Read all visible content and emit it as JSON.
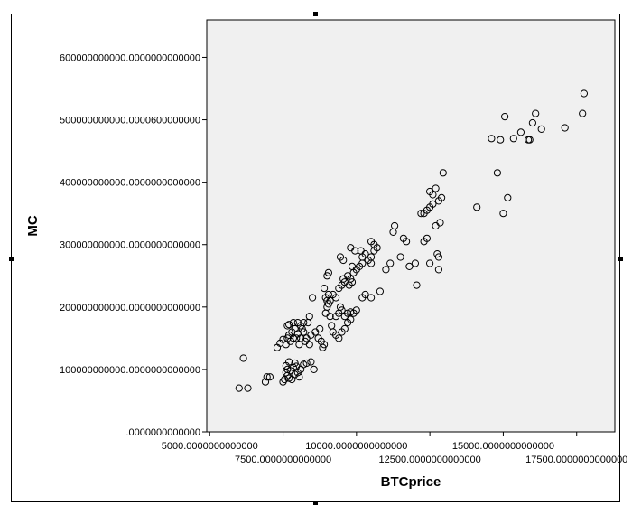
{
  "chart_data": {
    "type": "scatter",
    "title": "",
    "xlabel": "BTCprice",
    "ylabel": "MC",
    "xlim": [
      4900,
      18800
    ],
    "ylim": [
      0,
      660000000000
    ],
    "x_ticks": [
      {
        "value": 5000,
        "label": "5000.0000000000000"
      },
      {
        "value": 7500,
        "label": "7500.0000000000000"
      },
      {
        "value": 10000,
        "label": "10000.0000000000000"
      },
      {
        "value": 12500,
        "label": "12500.0000000000000"
      },
      {
        "value": 15000,
        "label": "15000.0000000000000"
      },
      {
        "value": 17500,
        "label": "17500.0000000000000"
      }
    ],
    "y_ticks": [
      {
        "value": 0,
        "label": ".0000000000000"
      },
      {
        "value": 100000000000,
        "label": "100000000000.0000000000000"
      },
      {
        "value": 200000000000,
        "label": "200000000000.0000000000000"
      },
      {
        "value": 300000000000,
        "label": "300000000000.0000000000000"
      },
      {
        "value": 400000000000,
        "label": "400000000000.0000000000000"
      },
      {
        "value": 500000000000,
        "label": "500000000000.0000600000000"
      },
      {
        "value": 600000000000,
        "label": "600000000000.0000000000000"
      }
    ],
    "grid": false,
    "colors": {
      "plot_background": "#f0f0f0",
      "marker_stroke": "#000000"
    },
    "points": [
      [
        6000,
        70000000000.0
      ],
      [
        6300,
        70000000000.0
      ],
      [
        6150,
        118000000000.0
      ],
      [
        6900,
        80000000000.0
      ],
      [
        6950,
        88000000000.0
      ],
      [
        7050,
        88000000000.0
      ],
      [
        7500,
        80000000000.0
      ],
      [
        7550,
        84000000000.0
      ],
      [
        7650,
        90000000000.0
      ],
      [
        7700,
        86000000000.0
      ],
      [
        7800,
        84000000000.0
      ],
      [
        7900,
        92000000000.0
      ],
      [
        8000,
        95000000000.0
      ],
      [
        8050,
        88000000000.0
      ],
      [
        7600,
        95000000000.0
      ],
      [
        7650,
        100000000000.0
      ],
      [
        7750,
        98000000000.0
      ],
      [
        7850,
        103000000000.0
      ],
      [
        7950,
        105000000000.0
      ],
      [
        8100,
        100000000000.0
      ],
      [
        8200,
        108000000000.0
      ],
      [
        7600,
        106000000000.0
      ],
      [
        7700,
        112000000000.0
      ],
      [
        7900,
        110000000000.0
      ],
      [
        8300,
        110000000000.0
      ],
      [
        8450,
        112000000000.0
      ],
      [
        8550,
        100000000000.0
      ],
      [
        7300,
        135000000000.0
      ],
      [
        7400,
        142000000000.0
      ],
      [
        7500,
        148000000000.0
      ],
      [
        7600,
        140000000000.0
      ],
      [
        7650,
        150000000000.0
      ],
      [
        7700,
        155000000000.0
      ],
      [
        7750,
        145000000000.0
      ],
      [
        7800,
        160000000000.0
      ],
      [
        7850,
        150000000000.0
      ],
      [
        7900,
        165000000000.0
      ],
      [
        7950,
        150000000000.0
      ],
      [
        8000,
        157000000000.0
      ],
      [
        8050,
        140000000000.0
      ],
      [
        8100,
        150000000000.0
      ],
      [
        8150,
        165000000000.0
      ],
      [
        8200,
        160000000000.0
      ],
      [
        8250,
        145000000000.0
      ],
      [
        8300,
        150000000000.0
      ],
      [
        8350,
        175000000000.0
      ],
      [
        8400,
        140000000000.0
      ],
      [
        8450,
        155000000000.0
      ],
      [
        7650,
        170000000000.0
      ],
      [
        7700,
        172000000000.0
      ],
      [
        7850,
        175000000000.0
      ],
      [
        8000,
        175000000000.0
      ],
      [
        8100,
        170000000000.0
      ],
      [
        8200,
        175000000000.0
      ],
      [
        8400,
        185000000000.0
      ],
      [
        8500,
        215000000000.0
      ],
      [
        8600,
        160000000000.0
      ],
      [
        8700,
        150000000000.0
      ],
      [
        8750,
        165000000000.0
      ],
      [
        8800,
        145000000000.0
      ],
      [
        8850,
        135000000000.0
      ],
      [
        8900,
        140000000000.0
      ],
      [
        8950,
        190000000000.0
      ],
      [
        9000,
        200000000000.0
      ],
      [
        9050,
        205000000000.0
      ],
      [
        9100,
        210000000000.0
      ],
      [
        9100,
        185000000000.0
      ],
      [
        9150,
        170000000000.0
      ],
      [
        9200,
        160000000000.0
      ],
      [
        9300,
        155000000000.0
      ],
      [
        9400,
        150000000000.0
      ],
      [
        9500,
        160000000000.0
      ],
      [
        9600,
        165000000000.0
      ],
      [
        9700,
        175000000000.0
      ],
      [
        9800,
        180000000000.0
      ],
      [
        8950,
        215000000000.0
      ],
      [
        9000,
        210000000000.0
      ],
      [
        9050,
        220000000000.0
      ],
      [
        8900,
        230000000000.0
      ],
      [
        9000,
        250000000000.0
      ],
      [
        9050,
        255000000000.0
      ],
      [
        9300,
        185000000000.0
      ],
      [
        9400,
        190000000000.0
      ],
      [
        9450,
        200000000000.0
      ],
      [
        9500,
        195000000000.0
      ],
      [
        9600,
        185000000000.0
      ],
      [
        9700,
        190000000000.0
      ],
      [
        9800,
        192000000000.0
      ],
      [
        9900,
        190000000000.0
      ],
      [
        10000,
        195000000000.0
      ],
      [
        9200,
        220000000000.0
      ],
      [
        9300,
        215000000000.0
      ],
      [
        9400,
        230000000000.0
      ],
      [
        9500,
        235000000000.0
      ],
      [
        9550,
        245000000000.0
      ],
      [
        9600,
        240000000000.0
      ],
      [
        9700,
        250000000000.0
      ],
      [
        9750,
        235000000000.0
      ],
      [
        9800,
        245000000000.0
      ],
      [
        9850,
        240000000000.0
      ],
      [
        9900,
        255000000000.0
      ],
      [
        10000,
        260000000000.0
      ],
      [
        10100,
        265000000000.0
      ],
      [
        10200,
        270000000000.0
      ],
      [
        10200,
        280000000000.0
      ],
      [
        10300,
        285000000000.0
      ],
      [
        10400,
        275000000000.0
      ],
      [
        10500,
        280000000000.0
      ],
      [
        10500,
        270000000000.0
      ],
      [
        10600,
        290000000000.0
      ],
      [
        10600,
        300000000000.0
      ],
      [
        10700,
        295000000000.0
      ],
      [
        10500,
        305000000000.0
      ],
      [
        9850,
        265000000000.0
      ],
      [
        9950,
        290000000000.0
      ],
      [
        10150,
        290000000000.0
      ],
      [
        9800,
        295000000000.0
      ],
      [
        9550,
        275000000000.0
      ],
      [
        9450,
        280000000000.0
      ],
      [
        10200,
        215000000000.0
      ],
      [
        10300,
        220000000000.0
      ],
      [
        10500,
        215000000000.0
      ],
      [
        10800,
        225000000000.0
      ],
      [
        11000,
        260000000000.0
      ],
      [
        11150,
        270000000000.0
      ],
      [
        11250,
        320000000000.0
      ],
      [
        11300,
        330000000000.0
      ],
      [
        11500,
        280000000000.0
      ],
      [
        11600,
        310000000000.0
      ],
      [
        11700,
        305000000000.0
      ],
      [
        11800,
        265000000000.0
      ],
      [
        12000,
        270000000000.0
      ],
      [
        12050,
        235000000000.0
      ],
      [
        12200,
        350000000000.0
      ],
      [
        12300,
        350000000000.0
      ],
      [
        12400,
        355000000000.0
      ],
      [
        12400,
        310000000000.0
      ],
      [
        12500,
        270000000000.0
      ],
      [
        12500,
        360000000000.0
      ],
      [
        12600,
        365000000000.0
      ],
      [
        12600,
        380000000000.0
      ],
      [
        12700,
        390000000000.0
      ],
      [
        12700,
        330000000000.0
      ],
      [
        12750,
        285000000000.0
      ],
      [
        12800,
        280000000000.0
      ],
      [
        12800,
        260000000000.0
      ],
      [
        12850,
        335000000000.0
      ],
      [
        12900,
        375000000000.0
      ],
      [
        12950,
        415000000000.0
      ],
      [
        12500,
        385000000000.0
      ],
      [
        12800,
        370000000000.0
      ],
      [
        12300,
        305000000000.0
      ],
      [
        14100,
        360000000000.0
      ],
      [
        14600,
        470000000000.0
      ],
      [
        14800,
        415000000000.0
      ],
      [
        14900,
        468000000000.0
      ],
      [
        15000,
        350000000000.0
      ],
      [
        15050,
        505000000000.0
      ],
      [
        15150,
        375000000000.0
      ],
      [
        15350,
        470000000000.0
      ],
      [
        15600,
        480000000000.0
      ],
      [
        15850,
        468000000000.0
      ],
      [
        15900,
        468000000000.0
      ],
      [
        16000,
        495000000000.0
      ],
      [
        16100,
        510000000000.0
      ],
      [
        16300,
        485000000000.0
      ],
      [
        17100,
        487000000000.0
      ],
      [
        17700,
        510000000000.0
      ],
      [
        17750,
        542000000000.0
      ]
    ]
  }
}
